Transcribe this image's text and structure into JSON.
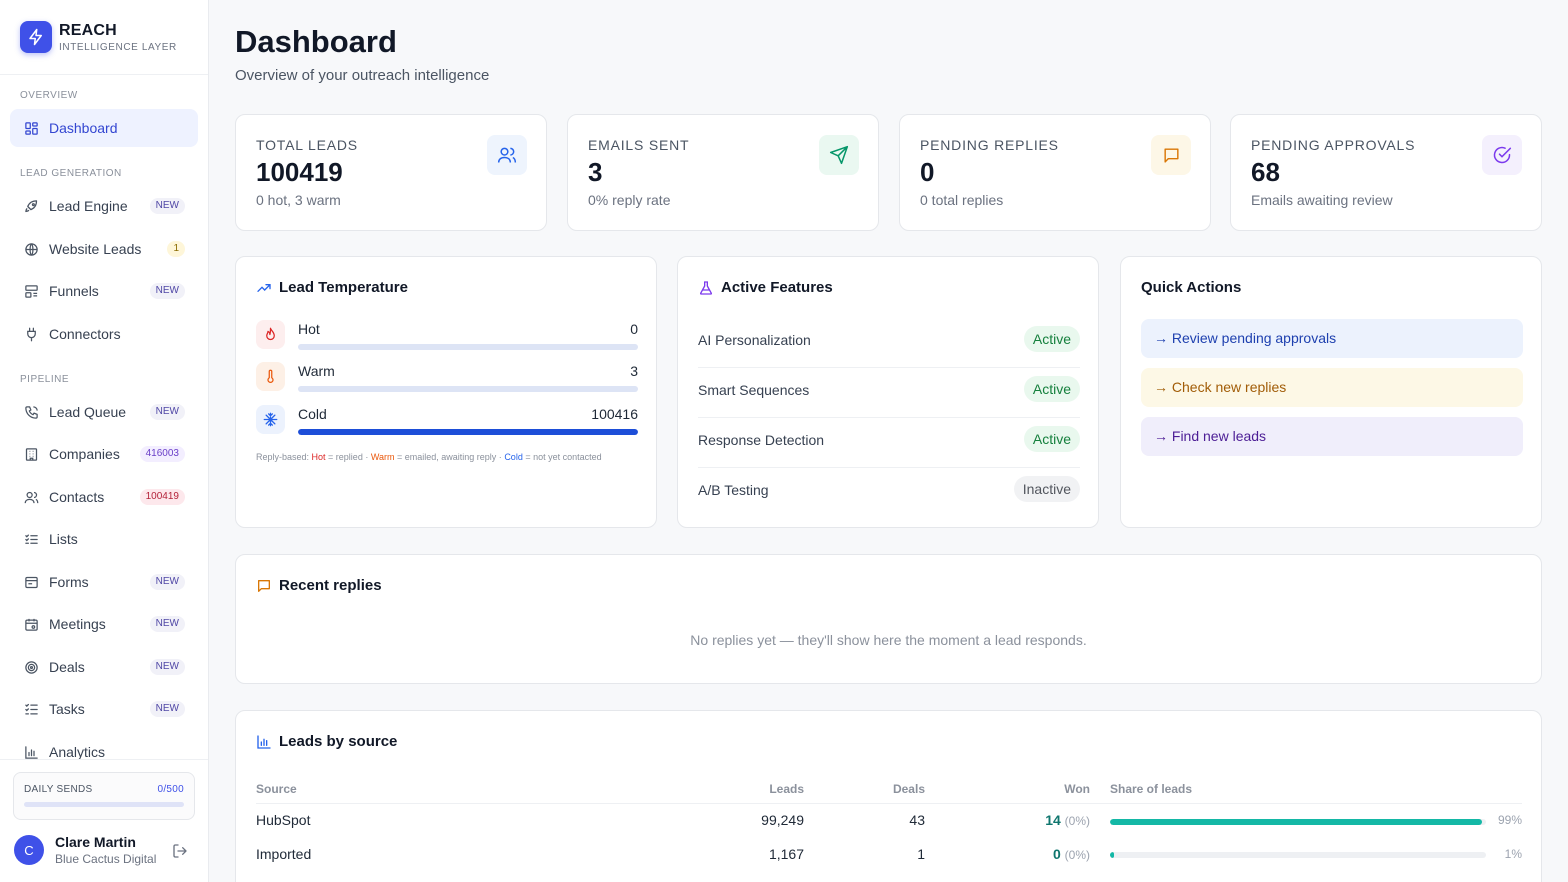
{
  "brand": {
    "name": "REACH",
    "subtitle": "INTELLIGENCE LAYER",
    "color": "#3f51e8"
  },
  "sidebar": {
    "sections": [
      "OVERVIEW",
      "LEAD GENERATION",
      "PIPELINE"
    ],
    "items": [
      {
        "label": "Dashboard",
        "icon": "dashboard-grid-icon",
        "active": true
      },
      {
        "label": "Lead Engine",
        "icon": "rocket-icon",
        "badge": "NEW"
      },
      {
        "label": "Website Leads",
        "icon": "globe-icon",
        "badge": "1"
      },
      {
        "label": "Funnels",
        "icon": "funnel-icon",
        "badge": "NEW"
      },
      {
        "label": "Connectors",
        "icon": "plug-icon"
      },
      {
        "label": "Lead Queue",
        "icon": "phone-icon",
        "badge": "NEW"
      },
      {
        "label": "Companies",
        "icon": "building-icon",
        "badge": "416003"
      },
      {
        "label": "Contacts",
        "icon": "users-icon",
        "badge": "100419"
      },
      {
        "label": "Lists",
        "icon": "list-icon"
      },
      {
        "label": "Forms",
        "icon": "form-icon",
        "badge": "NEW"
      },
      {
        "label": "Meetings",
        "icon": "calendar-icon",
        "badge": "NEW"
      },
      {
        "label": "Deals",
        "icon": "target-icon",
        "badge": "NEW"
      },
      {
        "label": "Tasks",
        "icon": "tasks-icon",
        "badge": "NEW"
      },
      {
        "label": "Analytics",
        "icon": "bar-chart-icon"
      }
    ],
    "daily_sends": {
      "label": "DAILY SENDS",
      "value": "0/500",
      "fraction": 0
    },
    "user": {
      "initial": "C",
      "name": "Clare Martin",
      "org": "Blue Cactus Digital"
    }
  },
  "header": {
    "title": "Dashboard",
    "subtitle": "Overview of your outreach intelligence"
  },
  "stats": [
    {
      "label": "TOTAL LEADS",
      "value": "100419",
      "sub": "0 hot, 3 warm",
      "icon": "users-icon",
      "color": "#2563eb"
    },
    {
      "label": "EMAILS SENT",
      "value": "3",
      "sub": "0% reply rate",
      "icon": "send-icon",
      "color": "#059669"
    },
    {
      "label": "PENDING REPLIES",
      "value": "0",
      "sub": "0 total replies",
      "icon": "message-icon",
      "color": "#d97706"
    },
    {
      "label": "PENDING APPROVALS",
      "value": "68",
      "sub": "Emails awaiting review",
      "icon": "check-circle-icon",
      "color": "#7c3aed"
    }
  ],
  "lead_temperature": {
    "title": "Lead Temperature",
    "rows": [
      {
        "name": "Hot",
        "value": "0",
        "fraction": 0
      },
      {
        "name": "Warm",
        "value": "3",
        "fraction": 3e-05
      },
      {
        "name": "Cold",
        "value": "100416",
        "fraction": 1
      }
    ],
    "legend": {
      "prefix": "Reply-based: ",
      "hot": "Hot",
      "hot_desc": " = replied · ",
      "warm": "Warm",
      "warm_desc": " = emailed, awaiting reply · ",
      "cold": "Cold",
      "cold_desc": " = not yet contacted"
    }
  },
  "active_features": {
    "title": "Active Features",
    "rows": [
      {
        "name": "AI Personalization",
        "status": "Active",
        "on": true
      },
      {
        "name": "Smart Sequences",
        "status": "Active",
        "on": true
      },
      {
        "name": "Response Detection",
        "status": "Active",
        "on": true
      },
      {
        "name": "A/B Testing",
        "status": "Inactive",
        "on": false
      }
    ]
  },
  "quick_actions": {
    "title": "Quick Actions",
    "items": [
      "→ Review pending approvals",
      "→ Check new replies",
      "→ Find new leads"
    ]
  },
  "recent_replies": {
    "title": "Recent replies",
    "empty": "No replies yet — they'll show here the moment a lead responds."
  },
  "leads_by_source": {
    "title": "Leads by source",
    "columns": [
      "Source",
      "Leads",
      "Deals",
      "Won",
      "Share of leads"
    ],
    "rows": [
      {
        "source": "HubSpot",
        "leads": "99,249",
        "deals": "43",
        "won": "14",
        "won_pct": "(0%)",
        "share": "99%",
        "share_fraction": 0.99
      },
      {
        "source": "Imported",
        "leads": "1,167",
        "deals": "1",
        "won": "0",
        "won_pct": "(0%)",
        "share": "1%",
        "share_fraction": 0.01
      }
    ]
  }
}
